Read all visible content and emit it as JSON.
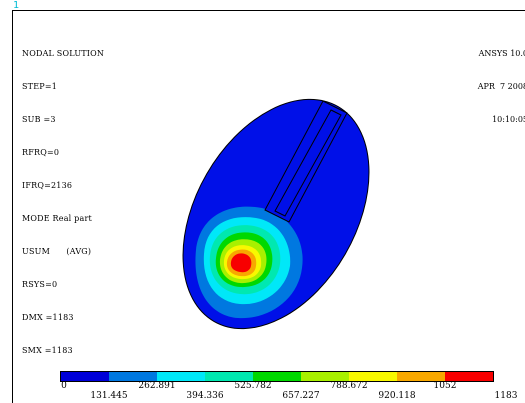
{
  "window": {
    "number": "1"
  },
  "result": {
    "title": "NODAL SOLUTION",
    "lines": [
      "STEP=1",
      "SUB =3",
      "RFRQ=0",
      "IFRQ=2136",
      "MODE Real part",
      "USUM      (AVG)",
      "RSYS=0",
      "DMX =1183",
      "SMX =1183"
    ]
  },
  "header": {
    "product": "ANSYS 10.0",
    "date": "APR  7 2008",
    "time": "10:10:05"
  },
  "legend": {
    "colors": [
      "#0000d8",
      "#0078e0",
      "#00e8f8",
      "#00e8b0",
      "#00d800",
      "#a8f000",
      "#f8f800",
      "#f8a800",
      "#f80000"
    ],
    "upper_labels": [
      "0",
      "262.891",
      "525.782",
      "788.672",
      "1052"
    ],
    "lower_labels": [
      "131.445",
      "394.336",
      "657.227",
      "920.118",
      "1183"
    ]
  },
  "colors": {
    "model_base": "#0010e8",
    "outline": "#000000",
    "window_number": "#00bcd4"
  }
}
